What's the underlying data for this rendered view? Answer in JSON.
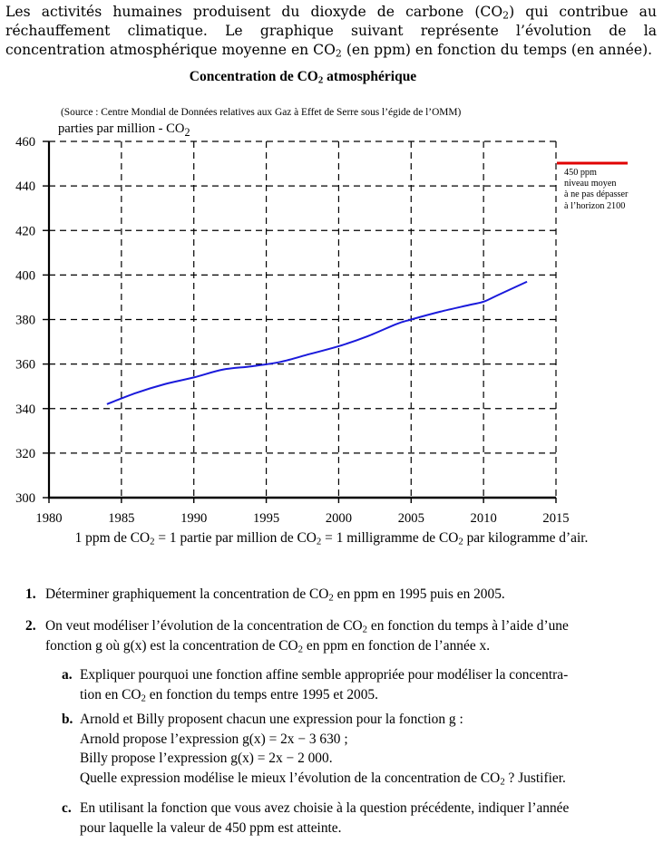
{
  "intro": {
    "text": "Les activités humaines produisent du dioxyde de carbone (CO₂) qui contribue au réchauffement climatique. Le graphique suivant représente l’évolution de la concentration atmosphérique moyenne en CO₂ (en ppm) en fonction du temps (en année)."
  },
  "chart_data": {
    "type": "line",
    "title": "Concentration de CO₂ atmosphérique",
    "source": "(Source : Centre Mondial de Données relatives aux Gaz à Effet de Serre sous l’égide de l’OMM)",
    "ylabel": "parties par million - CO₂",
    "xlabel": "",
    "xlim": [
      1980,
      2015
    ],
    "ylim": [
      300,
      460
    ],
    "x_ticks": [
      1980,
      1985,
      1990,
      1995,
      2000,
      2005,
      2010,
      2015
    ],
    "y_ticks": [
      300,
      320,
      340,
      360,
      380,
      400,
      420,
      440,
      460
    ],
    "grid": true,
    "series": [
      {
        "color": "#1a1adb",
        "x": [
          1984,
          1986,
          1988,
          1990,
          1992,
          1994,
          1996,
          1998,
          2000,
          2002,
          2004,
          2005,
          2007,
          2009,
          2010,
          2011,
          2013
        ],
        "y": [
          342,
          347,
          351,
          354,
          357.5,
          359,
          361,
          364.5,
          368,
          372.5,
          378,
          380,
          383.5,
          386.5,
          388,
          391,
          397
        ]
      }
    ],
    "threshold": {
      "value": 450,
      "color": "#e00000",
      "label_lines": [
        "450 ppm",
        "niveau moyen",
        "à ne pas dépasser",
        "à l’horizon 2100"
      ]
    }
  },
  "note": {
    "text": "1 ppm de CO₂ = 1 partie par million de CO₂ = 1 milligramme de CO₂ par kilogramme d’air."
  },
  "questions": {
    "q1": {
      "num": "1.",
      "text": "Déterminer graphiquement la concentration de CO₂ en ppm en 1995 puis en 2005."
    },
    "q2": {
      "num": "2.",
      "line1": "On veut modéliser l’évolution de la concentration de CO₂ en fonction du temps à l’aide d’une",
      "line2": "fonction g où g(x) est la concentration de CO₂ en ppm en fonction de l’année x.",
      "a": {
        "letter": "a.",
        "line1": "Expliquer pourquoi une fonction affine semble appropriée pour modéliser la concentra-",
        "line2": "tion en CO₂ en fonction du temps entre 1995 et 2005."
      },
      "b": {
        "letter": "b.",
        "line1": "Arnold et Billy proposent chacun une expression pour la fonction g :",
        "line2": "Arnold propose l’expression g(x) = 2x − 3 630 ;",
        "line3": "Billy propose l’expression g(x) = 2x − 2 000.",
        "line4": "Quelle expression modélise le mieux l’évolution de la concentration de CO₂ ? Justifier."
      },
      "c": {
        "letter": "c.",
        "line1": "En utilisant la fonction que vous avez choisie à la question précédente, indiquer l’année",
        "line2": "pour laquelle la valeur de 450 ppm est atteinte."
      }
    }
  }
}
